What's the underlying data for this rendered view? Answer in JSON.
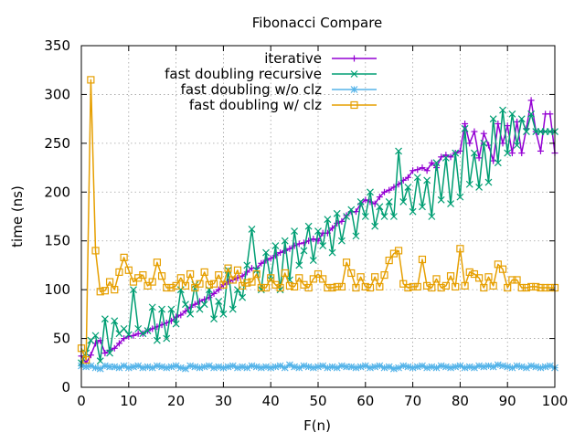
{
  "chart_data": {
    "type": "line",
    "title": "Fibonacci Compare",
    "xlabel": "F(n)",
    "ylabel": "time (ns)",
    "xlim": [
      0,
      100
    ],
    "ylim": [
      0,
      350
    ],
    "xticks": [
      0,
      10,
      20,
      30,
      40,
      50,
      60,
      70,
      80,
      90,
      100
    ],
    "yticks": [
      0,
      50,
      100,
      150,
      200,
      250,
      300,
      350
    ],
    "grid": true,
    "legend_position": "top-right",
    "series": [
      {
        "name": "iterative",
        "color": "#9400d3",
        "marker": "plus",
        "x": [
          0,
          1,
          2,
          3,
          4,
          5,
          6,
          7,
          8,
          9,
          10,
          11,
          12,
          13,
          14,
          15,
          16,
          17,
          18,
          19,
          20,
          21,
          22,
          23,
          24,
          25,
          26,
          27,
          28,
          29,
          30,
          31,
          32,
          33,
          34,
          35,
          36,
          37,
          38,
          39,
          40,
          41,
          42,
          43,
          44,
          45,
          46,
          47,
          48,
          49,
          50,
          51,
          52,
          53,
          54,
          55,
          56,
          57,
          58,
          59,
          60,
          61,
          62,
          63,
          64,
          65,
          66,
          67,
          68,
          69,
          70,
          71,
          72,
          73,
          74,
          75,
          76,
          77,
          78,
          79,
          80,
          81,
          82,
          83,
          84,
          85,
          86,
          87,
          88,
          89,
          90,
          91,
          92,
          93,
          94,
          95,
          96,
          97,
          98,
          99,
          100
        ],
        "y": [
          32,
          25,
          33,
          45,
          48,
          35,
          38,
          40,
          45,
          50,
          52,
          53,
          55,
          55,
          58,
          60,
          62,
          64,
          66,
          68,
          72,
          74,
          78,
          82,
          85,
          88,
          90,
          92,
          96,
          100,
          105,
          108,
          110,
          112,
          114,
          118,
          122,
          122,
          127,
          130,
          132,
          135,
          138,
          140,
          142,
          145,
          147,
          148,
          150,
          152,
          150,
          158,
          158,
          163,
          168,
          170,
          176,
          180,
          180,
          188,
          192,
          190,
          188,
          195,
          200,
          202,
          205,
          208,
          212,
          215,
          222,
          223,
          225,
          222,
          230,
          225,
          236,
          238,
          236,
          240,
          242,
          270,
          250,
          262,
          235,
          260,
          248,
          232,
          270,
          250,
          268,
          240,
          272,
          240,
          265,
          294,
          262,
          242,
          280,
          280,
          240
        ]
      },
      {
        "name": "fast doubling recursive",
        "color": "#009e73",
        "marker": "cross",
        "x": [
          0,
          1,
          2,
          3,
          4,
          5,
          6,
          7,
          8,
          9,
          10,
          11,
          12,
          13,
          14,
          15,
          16,
          17,
          18,
          19,
          20,
          21,
          22,
          23,
          24,
          25,
          26,
          27,
          28,
          29,
          30,
          31,
          32,
          33,
          34,
          35,
          36,
          37,
          38,
          39,
          40,
          41,
          42,
          43,
          44,
          45,
          46,
          47,
          48,
          49,
          50,
          51,
          52,
          53,
          54,
          55,
          56,
          57,
          58,
          59,
          60,
          61,
          62,
          63,
          64,
          65,
          66,
          67,
          68,
          69,
          70,
          71,
          72,
          73,
          74,
          75,
          76,
          77,
          78,
          79,
          80,
          81,
          82,
          83,
          84,
          85,
          86,
          87,
          88,
          89,
          90,
          91,
          92,
          93,
          94,
          95,
          96,
          97,
          98,
          99,
          100
        ],
        "y": [
          25,
          35,
          48,
          53,
          27,
          70,
          35,
          68,
          55,
          60,
          54,
          100,
          60,
          55,
          58,
          82,
          48,
          80,
          50,
          80,
          65,
          100,
          85,
          75,
          105,
          80,
          85,
          100,
          70,
          88,
          75,
          120,
          80,
          100,
          92,
          125,
          162,
          120,
          100,
          138,
          110,
          145,
          100,
          150,
          110,
          160,
          125,
          140,
          165,
          130,
          160,
          145,
          172,
          138,
          178,
          150,
          175,
          182,
          155,
          190,
          175,
          200,
          165,
          185,
          175,
          190,
          175,
          242,
          190,
          205,
          180,
          215,
          185,
          212,
          175,
          230,
          192,
          235,
          188,
          240,
          195,
          265,
          208,
          240,
          205,
          250,
          210,
          275,
          230,
          284,
          240,
          280,
          248,
          275,
          262,
          280,
          262,
          262,
          262,
          262,
          262
        ]
      },
      {
        "name": "fast doubling w/o clz",
        "color": "#56b4e9",
        "marker": "star",
        "x": [
          0,
          1,
          2,
          3,
          4,
          5,
          6,
          7,
          8,
          9,
          10,
          11,
          12,
          13,
          14,
          15,
          16,
          17,
          18,
          19,
          20,
          21,
          22,
          23,
          24,
          25,
          26,
          27,
          28,
          29,
          30,
          31,
          32,
          33,
          34,
          35,
          36,
          37,
          38,
          39,
          40,
          41,
          42,
          43,
          44,
          45,
          46,
          47,
          48,
          49,
          50,
          51,
          52,
          53,
          54,
          55,
          56,
          57,
          58,
          59,
          60,
          61,
          62,
          63,
          64,
          65,
          66,
          67,
          68,
          69,
          70,
          71,
          72,
          73,
          74,
          75,
          76,
          77,
          78,
          79,
          80,
          81,
          82,
          83,
          84,
          85,
          86,
          87,
          88,
          89,
          90,
          91,
          92,
          93,
          94,
          95,
          96,
          97,
          98,
          99,
          100
        ],
        "y": [
          22,
          21,
          22,
          20,
          19,
          22,
          21,
          21,
          20,
          22,
          20,
          21,
          22,
          20,
          21,
          20,
          22,
          21,
          20,
          21,
          22,
          20,
          19,
          22,
          21,
          20,
          21,
          22,
          20,
          21,
          20,
          21,
          22,
          20,
          21,
          20,
          22,
          21,
          20,
          21,
          20,
          21,
          22,
          20,
          23,
          21,
          20,
          22,
          21,
          20,
          21,
          22,
          20,
          21,
          20,
          22,
          21,
          21,
          20,
          21,
          22,
          20,
          21,
          22,
          20,
          21,
          19,
          20,
          22,
          21,
          20,
          21,
          22,
          20,
          21,
          20,
          22,
          21,
          20,
          21,
          22,
          20,
          21,
          20,
          22,
          21,
          22,
          21,
          23,
          22,
          21,
          20,
          22,
          21,
          20,
          22,
          21,
          20,
          21,
          22,
          20
        ]
      },
      {
        "name": "fast doubling w/ clz",
        "color": "#e69f00",
        "marker": "square",
        "x": [
          0,
          1,
          2,
          3,
          4,
          5,
          6,
          7,
          8,
          9,
          10,
          11,
          12,
          13,
          14,
          15,
          16,
          17,
          18,
          19,
          20,
          21,
          22,
          23,
          24,
          25,
          26,
          27,
          28,
          29,
          30,
          31,
          32,
          33,
          34,
          35,
          36,
          37,
          38,
          39,
          40,
          41,
          42,
          43,
          44,
          45,
          46,
          47,
          48,
          49,
          50,
          51,
          52,
          53,
          54,
          55,
          56,
          57,
          58,
          59,
          60,
          61,
          62,
          63,
          64,
          65,
          66,
          67,
          68,
          69,
          70,
          71,
          72,
          73,
          74,
          75,
          76,
          77,
          78,
          79,
          80,
          81,
          82,
          83,
          84,
          85,
          86,
          87,
          88,
          89,
          90,
          91,
          92,
          93,
          94,
          95,
          96,
          97,
          98,
          99,
          100
        ],
        "y": [
          40,
          28,
          315,
          140,
          98,
          99,
          108,
          100,
          118,
          133,
          120,
          108,
          112,
          115,
          104,
          108,
          128,
          114,
          102,
          102,
          104,
          112,
          104,
          116,
          102,
          106,
          118,
          105,
          106,
          115,
          105,
          122,
          110,
          120,
          104,
          107,
          108,
          116,
          102,
          102,
          112,
          105,
          102,
          117,
          104,
          103,
          112,
          105,
          102,
          111,
          116,
          111,
          102,
          102,
          103,
          103,
          128,
          117,
          102,
          113,
          103,
          102,
          113,
          103,
          115,
          130,
          137,
          140,
          106,
          102,
          103,
          103,
          131,
          104,
          102,
          111,
          102,
          104,
          114,
          103,
          142,
          104,
          118,
          116,
          112,
          102,
          113,
          104,
          126,
          121,
          102,
          110,
          110,
          102,
          102,
          103,
          103,
          102,
          102,
          102,
          102
        ]
      }
    ]
  }
}
